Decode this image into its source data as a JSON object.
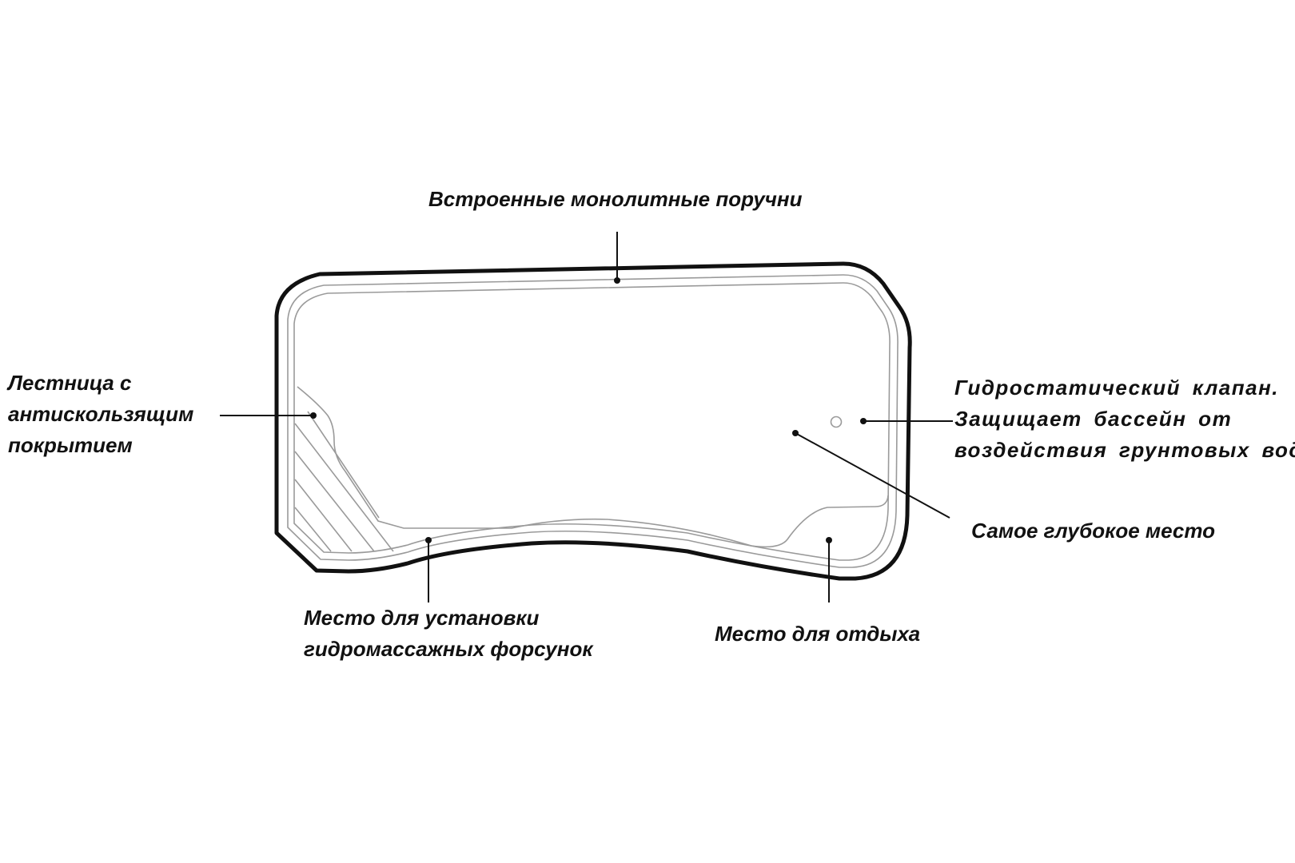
{
  "labels": {
    "handrails": "Встроенные монолитные поручни",
    "ladder": [
      "Лестница с",
      "антискользящим",
      "покрытием"
    ],
    "valve": [
      "Гидростатический клапан.",
      "Защищает бассейн от",
      "воздействия грунтовых вод"
    ],
    "deepest": "Самое глубокое место",
    "jets": [
      "Место для установки",
      "гидромассажных форсунок"
    ],
    "rest": "Место для отдыха"
  },
  "colors": {
    "outline": "#111111",
    "inner_line": "#9a9a9a",
    "text": "#111111",
    "background": "#ffffff"
  }
}
